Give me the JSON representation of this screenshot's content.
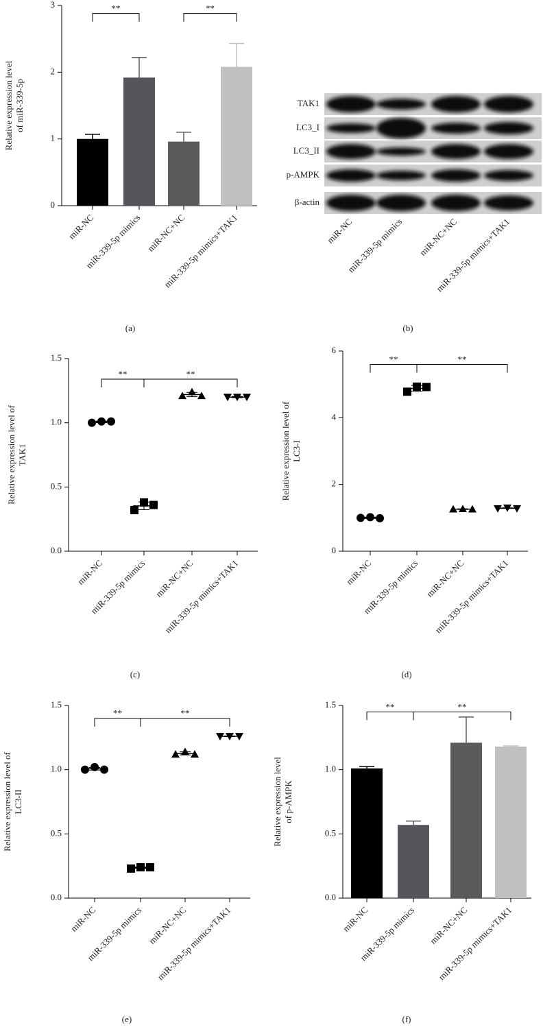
{
  "chart_data": [
    {
      "type": "bar",
      "panel_label": "(a)",
      "y_label": [
        "Relative expression level",
        "of miR-339-5p"
      ],
      "categories": [
        "miR-NC",
        "miR-339-5p mimics",
        "miR-NC+NC",
        "miR-339-5p mimics+TAK1"
      ],
      "values": [
        1.0,
        1.92,
        0.96,
        2.08
      ],
      "errors": [
        0.07,
        0.3,
        0.14,
        0.35
      ],
      "colors": [
        "#000000",
        "#55565c",
        "#5a5a5a",
        "#c0c0c0"
      ],
      "ylim": [
        0,
        3
      ],
      "yticks": [
        0,
        1,
        2,
        3
      ],
      "brackets": [
        {
          "between": [
            0,
            1
          ],
          "y": 2.88,
          "label": "**"
        },
        {
          "between": [
            2,
            3
          ],
          "y": 2.88,
          "label": "**"
        }
      ]
    },
    {
      "type": "scatter",
      "panel_label": "(c)",
      "y_label": [
        "Relative expression level of",
        "TAK1"
      ],
      "categories": [
        "miR-NC",
        "miR-339-5p mimics",
        "miR-NC+NC",
        "miR-339-5p mimics+TAK1"
      ],
      "points": [
        [
          1.0,
          1.01,
          1.01
        ],
        [
          0.32,
          0.38,
          0.36
        ],
        [
          1.21,
          1.24,
          1.21
        ],
        [
          1.2,
          1.2,
          1.2
        ]
      ],
      "means": [
        1.007,
        0.353,
        1.22,
        1.2
      ],
      "errors": [
        0.006,
        0.03,
        0.017,
        0.005
      ],
      "markers": [
        "circle",
        "square",
        "triangle-up",
        "triangle-down"
      ],
      "color": "#000000",
      "ylim": [
        0,
        1.5
      ],
      "yticks": [
        {
          "value": 0,
          "label": "0.0"
        },
        {
          "value": 0.5,
          "label": "0.5"
        },
        {
          "value": 1,
          "label": "1.0"
        },
        {
          "value": 1.5,
          "label": "1.5"
        }
      ],
      "brackets": [
        {
          "between": [
            0,
            1
          ],
          "y": 1.34,
          "label": "**"
        },
        {
          "between": [
            1,
            3
          ],
          "y": 1.34,
          "label": "**"
        }
      ]
    },
    {
      "type": "scatter",
      "panel_label": "(d)",
      "y_label": [
        "Relative expression level of",
        "LC3-I"
      ],
      "categories": [
        "miR-NC",
        "miR-339-5p mimics",
        "miR-NC+NC",
        "miR-339-5p mimics+TAK1"
      ],
      "points": [
        [
          1.0,
          1.02,
          0.99
        ],
        [
          4.78,
          4.93,
          4.92
        ],
        [
          1.26,
          1.27,
          1.26
        ],
        [
          1.28,
          1.3,
          1.28
        ]
      ],
      "means": [
        1.0,
        4.88,
        1.26,
        1.29
      ],
      "errors": [
        0.02,
        0.09,
        0.01,
        0.01
      ],
      "markers": [
        "circle",
        "square",
        "triangle-up",
        "triangle-down"
      ],
      "color": "#000000",
      "ylim": [
        0,
        6
      ],
      "yticks": [
        0,
        2,
        4,
        6
      ],
      "brackets": [
        {
          "between": [
            0,
            1
          ],
          "y": 5.6,
          "label": "**"
        },
        {
          "between": [
            1,
            3
          ],
          "y": 5.6,
          "label": "**"
        }
      ]
    },
    {
      "type": "scatter",
      "panel_label": "(e)",
      "y_label": [
        "Relative expression level of",
        "LC3-II"
      ],
      "categories": [
        "miR-NC",
        "miR-339-5p mimics",
        "miR-NC+NC",
        "miR-339-5p mimics+TAK1"
      ],
      "points": [
        [
          1.0,
          1.02,
          1.0
        ],
        [
          0.23,
          0.24,
          0.24
        ],
        [
          1.12,
          1.14,
          1.12
        ],
        [
          1.26,
          1.26,
          1.26
        ]
      ],
      "means": [
        1.007,
        0.237,
        1.127,
        1.26
      ],
      "errors": [
        0.01,
        0.006,
        0.012,
        0.003
      ],
      "markers": [
        "circle",
        "square",
        "triangle-up",
        "triangle-down"
      ],
      "color": "#000000",
      "ylim": [
        0,
        1.5
      ],
      "yticks": [
        {
          "value": 0,
          "label": "0.0"
        },
        {
          "value": 0.5,
          "label": "0.5"
        },
        {
          "value": 1,
          "label": "1.0"
        },
        {
          "value": 1.5,
          "label": "1.5"
        }
      ],
      "brackets": [
        {
          "between": [
            0,
            1
          ],
          "y": 1.4,
          "label": "**"
        },
        {
          "between": [
            1,
            3
          ],
          "y": 1.4,
          "label": "**"
        }
      ]
    },
    {
      "type": "bar",
      "panel_label": "(f)",
      "y_label": [
        "Relative expression level",
        "of p-AMPK"
      ],
      "categories": [
        "miR-NC",
        "miR-339-5p mimics",
        "miR-NC+NC",
        "miR-339-5p mimics+TAK1"
      ],
      "values": [
        1.01,
        0.57,
        1.21,
        1.18
      ],
      "errors": [
        0.015,
        0.03,
        0.2,
        0.005
      ],
      "colors": [
        "#000000",
        "#55565c",
        "#5a5a5a",
        "#c0c0c0"
      ],
      "ylim": [
        0,
        1.5
      ],
      "yticks": [
        {
          "value": 0,
          "label": "0.0"
        },
        {
          "value": 0.5,
          "label": "0.5"
        },
        {
          "value": 1,
          "label": "1.0"
        },
        {
          "value": 1.5,
          "label": "1.5"
        }
      ],
      "brackets": [
        {
          "between": [
            0,
            1
          ],
          "y": 1.45,
          "label": "**"
        },
        {
          "between": [
            1,
            3
          ],
          "y": 1.45,
          "label": "**"
        }
      ]
    }
  ],
  "blot": {
    "panel_label": "(b)",
    "rows": [
      "TAK1",
      "LC3_I",
      "LC3_II",
      "p-AMPK",
      "β-actin"
    ],
    "lanes": [
      "miR-NC",
      "miR-339-5p mimics",
      "miR-NC+NC",
      "miR-339-5p mimics+TAK1"
    ]
  }
}
